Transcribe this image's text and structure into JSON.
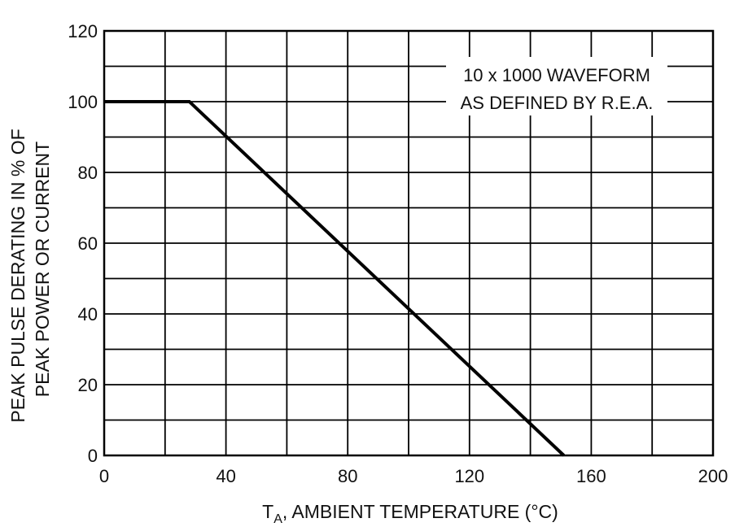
{
  "chart_data": {
    "type": "line",
    "xlabel_main": "T",
    "xlabel_sub": "A",
    "xlabel_rest": ", AMBIENT TEMPERATURE (°C)",
    "ylabel_lines": [
      "PEAK PULSE DERATING IN % OF",
      "PEAK POWER OR CURRENT"
    ],
    "xlim": [
      0,
      200
    ],
    "ylim": [
      0,
      120
    ],
    "x_ticks": [
      0,
      40,
      80,
      120,
      160,
      200
    ],
    "y_ticks": [
      0,
      20,
      40,
      60,
      80,
      100,
      120
    ],
    "x_grid_step": 20,
    "y_grid_step": 10,
    "grid": true,
    "series": [
      {
        "x": [
          0,
          28,
          151
        ],
        "y": [
          100,
          100,
          0
        ]
      }
    ],
    "annotation_lines": [
      "10 x 1000 WAVEFORM",
      "AS DEFINED BY R.E.A."
    ],
    "colors": {
      "line": "#000000",
      "grid": "#000000",
      "background": "#ffffff"
    }
  }
}
